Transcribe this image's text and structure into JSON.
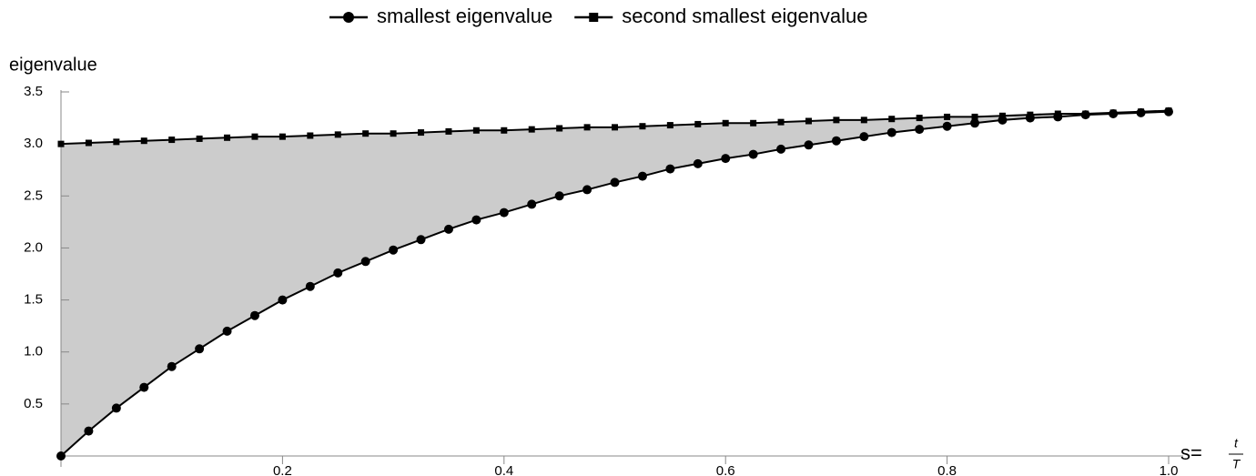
{
  "chart_data": {
    "type": "line",
    "legend_position": "top",
    "y_label": "eigenvalue",
    "x_label": "s=",
    "x_label_fraction": [
      "t",
      "T"
    ],
    "x": [
      0,
      0.025,
      0.05,
      0.075,
      0.1,
      0.125,
      0.15,
      0.175,
      0.2,
      0.225,
      0.25,
      0.275,
      0.3,
      0.325,
      0.35,
      0.375,
      0.4,
      0.425,
      0.45,
      0.475,
      0.5,
      0.525,
      0.55,
      0.575,
      0.6,
      0.625,
      0.65,
      0.675,
      0.7,
      0.725,
      0.75,
      0.775,
      0.8,
      0.825,
      0.85,
      0.875,
      0.9,
      0.925,
      0.95,
      0.975,
      1
    ],
    "series": [
      {
        "name": "smallest eigenvalue",
        "color": "#000000",
        "marker": "circle",
        "values": [
          0,
          0.24,
          0.46,
          0.66,
          0.86,
          1.03,
          1.2,
          1.35,
          1.5,
          1.63,
          1.76,
          1.87,
          1.98,
          2.08,
          2.18,
          2.27,
          2.34,
          2.42,
          2.5,
          2.56,
          2.63,
          2.69,
          2.76,
          2.81,
          2.86,
          2.9,
          2.95,
          2.99,
          3.03,
          3.07,
          3.11,
          3.14,
          3.17,
          3.2,
          3.23,
          3.25,
          3.26,
          3.28,
          3.29,
          3.3,
          3.31
        ]
      },
      {
        "name": "second smallest eigenvalue",
        "color": "#000000",
        "marker": "square",
        "values": [
          3,
          3.01,
          3.02,
          3.03,
          3.04,
          3.05,
          3.06,
          3.07,
          3.07,
          3.08,
          3.09,
          3.1,
          3.1,
          3.11,
          3.12,
          3.13,
          3.13,
          3.14,
          3.15,
          3.16,
          3.16,
          3.17,
          3.18,
          3.19,
          3.2,
          3.2,
          3.21,
          3.22,
          3.23,
          3.23,
          3.24,
          3.25,
          3.26,
          3.26,
          3.27,
          3.28,
          3.29,
          3.29,
          3.3,
          3.31,
          3.32
        ]
      }
    ],
    "fill_between": true,
    "fill_color": "#cccccc",
    "xlim": [
      0,
      1
    ],
    "ylim": [
      0,
      3.5
    ],
    "xticks": [
      0.2,
      0.4,
      0.6,
      0.8,
      {
        "value": 1,
        "label": "1.0"
      }
    ],
    "yticks": [
      0.5,
      {
        "value": 1,
        "label": "1.0"
      },
      1.5,
      {
        "value": 2,
        "label": "2.0"
      },
      2.5,
      {
        "value": 3,
        "label": "3.0"
      },
      3.5
    ],
    "grid": false
  }
}
